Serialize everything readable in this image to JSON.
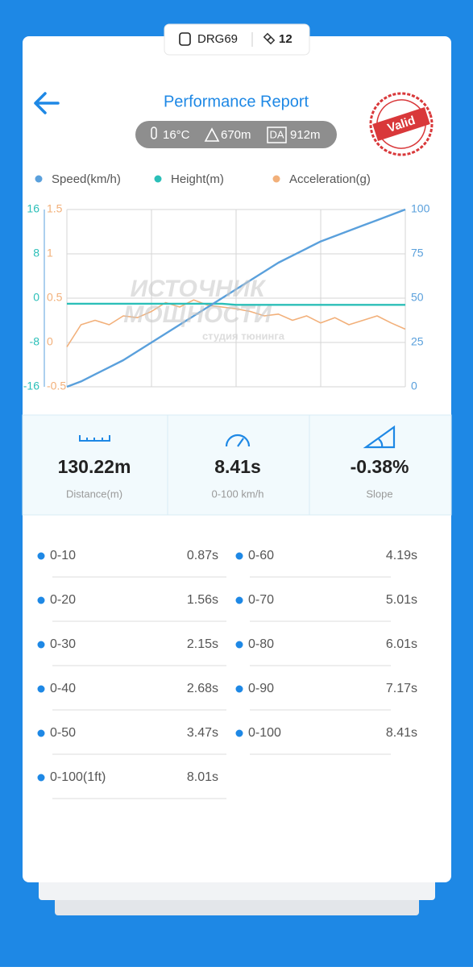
{
  "badge": {
    "device": "DRG69",
    "satellites": "12"
  },
  "header": {
    "title": "Performance Report",
    "stamp": "Valid"
  },
  "conditions": {
    "temperature": "16°C",
    "altitude": "670m",
    "da_label": "DA",
    "density_altitude": "912m"
  },
  "watermark": {
    "line1": "ИСТОЧНИК",
    "line2": "МОЩНОСТИ",
    "line3": "студия тюнинга"
  },
  "chart_data": {
    "type": "line",
    "categories": [
      null,
      null,
      null,
      null,
      null,
      null,
      null,
      null,
      null,
      null,
      null,
      null,
      null,
      null,
      null,
      null,
      null,
      null,
      null,
      null,
      null,
      null,
      null,
      null,
      null
    ],
    "series": [
      {
        "name": "Speed(km/h)",
        "color": "#5aa0dc",
        "axis": "y",
        "values": [
          0,
          3,
          7,
          11,
          15,
          20,
          25,
          30,
          35,
          40,
          45,
          50,
          55,
          60,
          65,
          70,
          74,
          78,
          82,
          85,
          88,
          91,
          94,
          97,
          100
        ]
      },
      {
        "name": "Height(m)",
        "color": "#2bbfb8",
        "axis": "y2",
        "values": [
          -1,
          -1,
          -1,
          -1,
          -1,
          -1,
          -1,
          -1,
          -1,
          -1,
          -1,
          -1,
          -1.2,
          -1.2,
          -1.2,
          -1.2,
          -1.2,
          -1.2,
          -1.2,
          -1.2,
          -1.2,
          -1.2,
          -1.2,
          -1.2,
          -1.2
        ]
      },
      {
        "name": "Acceleration(g)",
        "color": "#f2b07a",
        "axis": "y3",
        "values": [
          -0.05,
          0.2,
          0.25,
          0.2,
          0.3,
          0.28,
          0.35,
          0.45,
          0.4,
          0.48,
          0.42,
          0.4,
          0.38,
          0.35,
          0.3,
          0.32,
          0.25,
          0.3,
          0.22,
          0.28,
          0.2,
          0.25,
          0.3,
          0.22,
          0.15
        ]
      }
    ],
    "ylim": [
      0,
      100
    ],
    "yticks": [
      0,
      25,
      50,
      75,
      100
    ],
    "y2lim": [
      -16,
      16
    ],
    "y2ticks": [
      -16,
      -8,
      0,
      8,
      16
    ],
    "y3lim": [
      -0.5,
      1.5
    ],
    "y3ticks": [
      -0.5,
      0,
      0.5,
      1,
      1.5
    ],
    "grid": true
  },
  "stats": [
    {
      "value": "130.22m",
      "label": "Distance(m)"
    },
    {
      "value": "8.41s",
      "label": "0-100 km/h"
    },
    {
      "value": "-0.38%",
      "label": "Slope"
    }
  ],
  "splits_left": [
    {
      "label": "0-10",
      "time": "0.87s"
    },
    {
      "label": "0-20",
      "time": "1.56s"
    },
    {
      "label": "0-30",
      "time": "2.15s"
    },
    {
      "label": "0-40",
      "time": "2.68s"
    },
    {
      "label": "0-50",
      "time": "3.47s"
    },
    {
      "label": "0-100(1ft)",
      "time": "8.01s"
    }
  ],
  "splits_right": [
    {
      "label": "0-60",
      "time": "4.19s"
    },
    {
      "label": "0-70",
      "time": "5.01s"
    },
    {
      "label": "0-80",
      "time": "6.01s"
    },
    {
      "label": "0-90",
      "time": "7.17s"
    },
    {
      "label": "0-100",
      "time": "8.41s"
    }
  ]
}
